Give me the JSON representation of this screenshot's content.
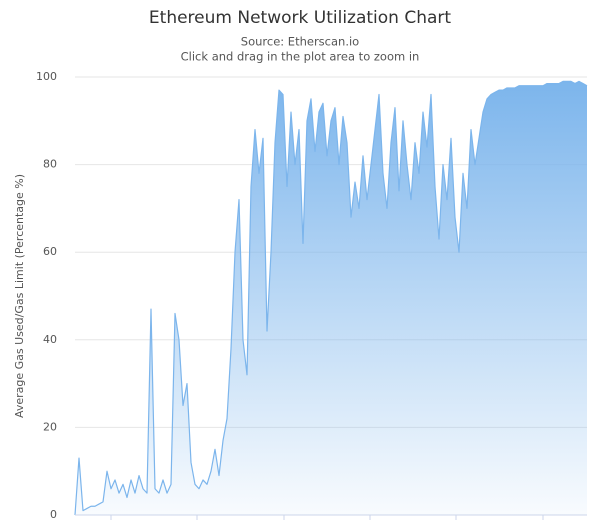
{
  "chart_data": {
    "type": "area",
    "title": "Ethereum Network Utilization Chart",
    "subtitle": "Source: Etherscan.io",
    "note": "Click and drag in the plot area to zoom in",
    "y_label": "Average Gas Used/Gas Limit (Percentage %)",
    "color": "#7cb5ec",
    "grid": true,
    "ylim": [
      0,
      100
    ],
    "yticks": [
      0,
      20,
      40,
      60,
      80,
      100
    ],
    "values": [
      0,
      13,
      1,
      1.5,
      2,
      2,
      2.5,
      3,
      10,
      6,
      8,
      5,
      7,
      4,
      8,
      5,
      9,
      6,
      5,
      47,
      6,
      5,
      8,
      5,
      7,
      46,
      40,
      25,
      30,
      12,
      7,
      6,
      8,
      7,
      10,
      15,
      9,
      17,
      22,
      38,
      60,
      72,
      40,
      32,
      75,
      88,
      78,
      86,
      42,
      60,
      85,
      97,
      96,
      75,
      92,
      80,
      88,
      62,
      90,
      95,
      83,
      92,
      94,
      82,
      90,
      93,
      80,
      91,
      85,
      68,
      76,
      70,
      82,
      72,
      80,
      88,
      96,
      78,
      70,
      85,
      93,
      74,
      90,
      80,
      72,
      85,
      78,
      92,
      84,
      96,
      75,
      63,
      80,
      72,
      86,
      68,
      60,
      78,
      70,
      88,
      80,
      86,
      92,
      95,
      96,
      96.5,
      97,
      97,
      97.5,
      97.5,
      97.5,
      98,
      98,
      98,
      98,
      98,
      98,
      98,
      98.5,
      98.5,
      98.5,
      98.5,
      99,
      99,
      99,
      98.5,
      99,
      98.5,
      98
    ]
  }
}
